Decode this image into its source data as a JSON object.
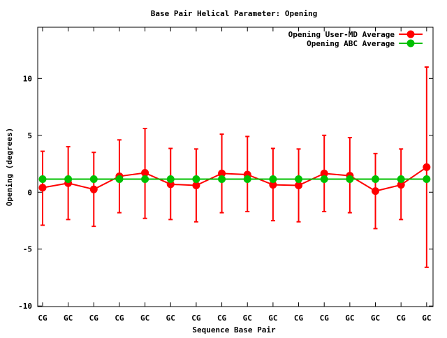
{
  "chart_data": {
    "type": "line",
    "title": "Base Pair Helical Parameter: Opening",
    "xlabel": "Sequence Base Pair",
    "ylabel": "Opening (degrees)",
    "categories": [
      "CG",
      "GC",
      "CG",
      "CG",
      "GC",
      "GC",
      "CG",
      "CG",
      "GC",
      "GC",
      "CG",
      "CG",
      "GC",
      "GC",
      "CG",
      "GC"
    ],
    "ylim": [
      -10.05,
      14.5
    ],
    "yticks": [
      -10,
      -5,
      0,
      5,
      10
    ],
    "grid": false,
    "legend_position": "top-right",
    "series": [
      {
        "name": "Opening User-MD Average",
        "color": "#ff0000",
        "values": [
          0.4,
          0.8,
          0.25,
          1.4,
          1.7,
          0.7,
          0.6,
          1.65,
          1.55,
          0.65,
          0.6,
          1.65,
          1.45,
          0.1,
          0.65,
          2.2
        ],
        "err_high": [
          3.6,
          4.0,
          3.5,
          4.6,
          5.6,
          3.85,
          3.8,
          5.1,
          4.9,
          3.85,
          3.8,
          5.0,
          4.8,
          3.4,
          3.8,
          11.0
        ],
        "err_low": [
          -2.9,
          -2.4,
          -3.0,
          -1.8,
          -2.3,
          -2.4,
          -2.6,
          -1.8,
          -1.7,
          -2.5,
          -2.6,
          -1.7,
          -1.8,
          -3.2,
          -2.4,
          -6.6
        ]
      },
      {
        "name": "Opening ABC Average",
        "color": "#00c000",
        "values": [
          1.15,
          1.15,
          1.15,
          1.15,
          1.15,
          1.15,
          1.15,
          1.15,
          1.15,
          1.15,
          1.15,
          1.15,
          1.15,
          1.15,
          1.15,
          1.15
        ]
      }
    ]
  }
}
